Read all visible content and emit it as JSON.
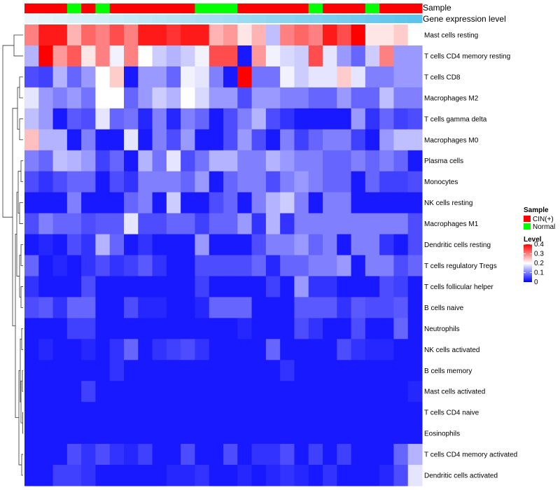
{
  "chart_data": {
    "type": "heatmap",
    "title": "",
    "annotation_labels": {
      "sample": "Sample",
      "level": "Gene expression level"
    },
    "sample_groups": [
      "CIN",
      "CIN",
      "CIN",
      "Normal",
      "CIN",
      "Normal",
      "CIN",
      "CIN",
      "CIN",
      "CIN",
      "CIN",
      "CIN",
      "Normal",
      "Normal",
      "Normal",
      "CIN",
      "CIN",
      "CIN",
      "CIN",
      "CIN",
      "Normal",
      "CIN",
      "CIN",
      "CIN",
      "Normal",
      "CIN",
      "CIN",
      "CIN"
    ],
    "sample_colors": {
      "CIN": "#ff0000",
      "Normal": "#00ff00"
    },
    "level_bar_colors": {
      "start": "#eaf6fb",
      "end": "#5bc3ec"
    },
    "rows": [
      "Mast cells resting",
      "T cells CD4 memory resting",
      "T cells CD8",
      "Macrophages M2",
      "T cells gamma delta",
      "Macrophages M0",
      "Plasma cells",
      "Monocytes",
      "NK cells resting",
      "Macrophages M1",
      "Dendritic cells resting",
      "T cells regulatory  Tregs",
      "T cells follicular helper",
      "B cells naive",
      "Neutrophils",
      "NK cells activated",
      "B cells memory",
      "Mast cells activated",
      "T cells CD4 naive",
      "Eosinophils",
      "T cells CD4 memory activated",
      "Dendritic cells activated"
    ],
    "values": [
      [
        0.3,
        0.38,
        0.38,
        0.26,
        0.32,
        0.3,
        0.34,
        0.3,
        0.38,
        0.38,
        0.36,
        0.38,
        0.38,
        0.26,
        0.28,
        0.22,
        0.26,
        0.15,
        0.3,
        0.32,
        0.3,
        0.38,
        0.34,
        0.4,
        0.22,
        0.22,
        0.24,
        0.2
      ],
      [
        0.14,
        0.4,
        0.28,
        0.33,
        0.22,
        0.3,
        0.19,
        0.3,
        0.2,
        0.16,
        0.14,
        0.16,
        0.19,
        0.34,
        0.34,
        0.02,
        0.28,
        0.19,
        0.17,
        0.16,
        0.34,
        0.18,
        0.12,
        0.08,
        0.16,
        0.3,
        0.12,
        0.12
      ],
      [
        0.06,
        0.05,
        0.14,
        0.08,
        0.12,
        0.2,
        0.24,
        0.02,
        0.12,
        0.12,
        0.08,
        0.19,
        0.18,
        0.1,
        0.02,
        0.4,
        0.09,
        0.09,
        0.19,
        0.16,
        0.18,
        0.18,
        0.24,
        0.18,
        0.1,
        0.1,
        0.12,
        0.12
      ],
      [
        0.18,
        0.12,
        0.1,
        0.12,
        0.09,
        0.2,
        0.2,
        0.08,
        0.12,
        0.16,
        0.14,
        0.2,
        0.17,
        0.12,
        0.12,
        0.06,
        0.12,
        0.12,
        0.1,
        0.1,
        0.08,
        0.08,
        0.12,
        0.08,
        0.08,
        0.15,
        0.1,
        0.1
      ],
      [
        0.15,
        0.12,
        0.02,
        0.07,
        0.06,
        0.18,
        0.08,
        0.09,
        0.03,
        0.1,
        0.03,
        0.1,
        0.08,
        0.02,
        0.06,
        0.1,
        0.14,
        0.06,
        0.04,
        0.02,
        0.02,
        0.02,
        0.02,
        0.12,
        0.04,
        0.08,
        0.05,
        0.06
      ],
      [
        0.25,
        0.14,
        0.14,
        0.02,
        0.1,
        0.02,
        0.02,
        0.18,
        0.02,
        0.1,
        0.06,
        0.12,
        0.02,
        0.02,
        0.06,
        0.12,
        0.06,
        0.02,
        0.1,
        0.05,
        0.08,
        0.1,
        0.1,
        0.05,
        0.02,
        0.12,
        0.15,
        0.15
      ],
      [
        0.1,
        0.08,
        0.15,
        0.14,
        0.12,
        0.05,
        0.08,
        0.02,
        0.14,
        0.09,
        0.18,
        0.06,
        0.09,
        0.14,
        0.14,
        0.1,
        0.1,
        0.14,
        0.12,
        0.1,
        0.1,
        0.08,
        0.08,
        0.1,
        0.08,
        0.1,
        0.08,
        0.02
      ],
      [
        0.06,
        0.04,
        0.06,
        0.08,
        0.08,
        0.02,
        0.06,
        0.04,
        0.1,
        0.1,
        0.1,
        0.08,
        0.12,
        0.02,
        0.08,
        0.1,
        0.1,
        0.06,
        0.1,
        0.12,
        0.1,
        0.08,
        0.08,
        0.02,
        0.08,
        0.05,
        0.05,
        0.06
      ],
      [
        0.02,
        0.02,
        0.02,
        0.1,
        0.02,
        0.02,
        0.02,
        0.08,
        0.1,
        0.02,
        0.16,
        0.02,
        0.02,
        0.06,
        0.08,
        0.02,
        0.1,
        0.14,
        0.16,
        0.1,
        0.02,
        0.1,
        0.1,
        0.02,
        0.02,
        0.02,
        0.02,
        0.02
      ],
      [
        0.06,
        0.1,
        0.08,
        0.08,
        0.06,
        0.07,
        0.07,
        0.18,
        0.06,
        0.06,
        0.08,
        0.08,
        0.05,
        0.08,
        0.08,
        0.12,
        0.04,
        0.14,
        0.04,
        0.1,
        0.1,
        0.1,
        0.1,
        0.1,
        0.1,
        0.1,
        0.1,
        0.06
      ],
      [
        0.02,
        0.03,
        0.02,
        0.06,
        0.04,
        0.14,
        0.08,
        0.02,
        0.04,
        0.02,
        0.02,
        0.02,
        0.12,
        0.02,
        0.02,
        0.02,
        0.06,
        0.1,
        0.1,
        0.12,
        0.08,
        0.1,
        0.02,
        0.1,
        0.1,
        0.04,
        0.02,
        0.06
      ],
      [
        0.08,
        0.02,
        0.03,
        0.02,
        0.04,
        0.06,
        0.04,
        0.05,
        0.07,
        0.04,
        0.02,
        0.02,
        0.06,
        0.06,
        0.06,
        0.06,
        0.08,
        0.03,
        0.08,
        0.08,
        0.1,
        0.1,
        0.12,
        0.02,
        0.1,
        0.1,
        0.06,
        0.08
      ],
      [
        0.04,
        0.02,
        0.02,
        0.02,
        0.06,
        0.02,
        0.02,
        0.02,
        0.02,
        0.02,
        0.02,
        0.02,
        0.05,
        0.02,
        0.02,
        0.02,
        0.02,
        0.05,
        0.02,
        0.12,
        0.04,
        0.04,
        0.02,
        0.02,
        0.02,
        0.06,
        0.05,
        0.02
      ],
      [
        0.06,
        0.07,
        0.04,
        0.08,
        0.08,
        0.02,
        0.02,
        0.06,
        0.03,
        0.03,
        0.02,
        0.02,
        0.03,
        0.08,
        0.08,
        0.08,
        0.02,
        0.02,
        0.02,
        0.07,
        0.07,
        0.07,
        0.04,
        0.07,
        0.06,
        0.06,
        0.07,
        0.02
      ],
      [
        0.02,
        0.02,
        0.02,
        0.05,
        0.05,
        0.02,
        0.02,
        0.02,
        0.02,
        0.02,
        0.02,
        0.02,
        0.02,
        0.02,
        0.02,
        0.03,
        0.02,
        0.02,
        0.02,
        0.06,
        0.04,
        0.02,
        0.02,
        0.06,
        0.02,
        0.02,
        0.08,
        0.02
      ],
      [
        0.02,
        0.03,
        0.02,
        0.02,
        0.03,
        0.02,
        0.04,
        0.08,
        0.02,
        0.04,
        0.05,
        0.06,
        0.04,
        0.02,
        0.02,
        0.02,
        0.02,
        0.08,
        0.02,
        0.02,
        0.02,
        0.02,
        0.06,
        0.04,
        0.03,
        0.03,
        0.02,
        0.02
      ],
      [
        0.02,
        0.02,
        0.02,
        0.02,
        0.02,
        0.02,
        0.04,
        0.02,
        0.02,
        0.02,
        0.02,
        0.02,
        0.02,
        0.02,
        0.02,
        0.02,
        0.02,
        0.02,
        0.04,
        0.02,
        0.02,
        0.02,
        0.02,
        0.02,
        0.02,
        0.02,
        0.02,
        0.02
      ],
      [
        0.02,
        0.02,
        0.02,
        0.02,
        0.05,
        0.02,
        0.02,
        0.02,
        0.02,
        0.02,
        0.02,
        0.02,
        0.02,
        0.02,
        0.02,
        0.02,
        0.02,
        0.02,
        0.02,
        0.02,
        0.02,
        0.02,
        0.02,
        0.02,
        0.02,
        0.02,
        0.02,
        0.03
      ],
      [
        0.02,
        0.02,
        0.02,
        0.02,
        0.02,
        0.02,
        0.02,
        0.02,
        0.02,
        0.02,
        0.02,
        0.02,
        0.02,
        0.02,
        0.02,
        0.02,
        0.02,
        0.02,
        0.02,
        0.02,
        0.02,
        0.02,
        0.02,
        0.02,
        0.02,
        0.02,
        0.02,
        0.02
      ],
      [
        0.02,
        0.02,
        0.02,
        0.02,
        0.02,
        0.02,
        0.02,
        0.02,
        0.02,
        0.02,
        0.02,
        0.02,
        0.02,
        0.02,
        0.02,
        0.02,
        0.02,
        0.02,
        0.02,
        0.02,
        0.02,
        0.02,
        0.02,
        0.02,
        0.02,
        0.02,
        0.02,
        0.02
      ],
      [
        0.02,
        0.02,
        0.02,
        0.06,
        0.04,
        0.06,
        0.04,
        0.03,
        0.05,
        0.02,
        0.02,
        0.06,
        0.02,
        0.02,
        0.06,
        0.02,
        0.04,
        0.04,
        0.06,
        0.02,
        0.05,
        0.02,
        0.05,
        0.02,
        0.02,
        0.02,
        0.08,
        0.14
      ],
      [
        0.02,
        0.02,
        0.05,
        0.05,
        0.04,
        0.02,
        0.02,
        0.02,
        0.02,
        0.02,
        0.03,
        0.03,
        0.04,
        0.02,
        0.02,
        0.03,
        0.02,
        0.03,
        0.04,
        0.03,
        0.02,
        0.04,
        0.02,
        0.02,
        0.02,
        0.03,
        0.06,
        0.18
      ]
    ],
    "color_scale": {
      "min": 0,
      "mid": 0.2,
      "max": 0.4,
      "low": "#0000ff",
      "mid_color": "#ffffff",
      "high": "#ff0000"
    },
    "legend": {
      "sample_title": "Sample",
      "sample_items": [
        "CIN(+)",
        "Normal"
      ],
      "level_title": "Level",
      "level_ticks": [
        "0.4",
        "0.3",
        "0.2",
        "0.1",
        "0"
      ],
      "placement": "right"
    }
  }
}
